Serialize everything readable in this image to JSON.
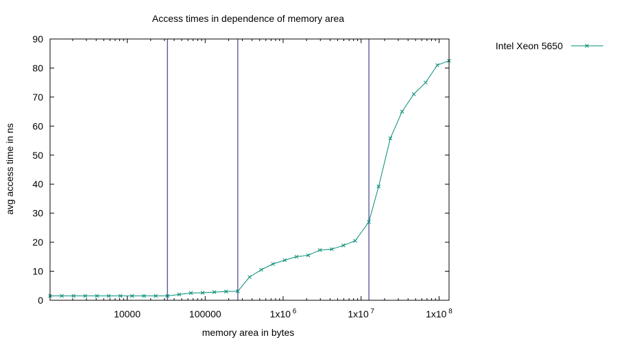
{
  "chart_data": {
    "type": "line",
    "title": "Access times in dependence of memory area",
    "xlabel": "memory area in bytes",
    "ylabel": "avg access time in ns",
    "x_scale": "log",
    "xlim": [
      1024,
      134217728
    ],
    "ylim": [
      0,
      90
    ],
    "y_ticks": [
      0,
      10,
      20,
      30,
      40,
      50,
      60,
      70,
      80,
      90
    ],
    "x_ticks": [
      {
        "value": 10000,
        "label": "10000"
      },
      {
        "value": 100000,
        "label": "100000"
      },
      {
        "value": 1000000,
        "label": "1x10",
        "exp": "6"
      },
      {
        "value": 10000000,
        "label": "1x10",
        "exp": "7"
      },
      {
        "value": 100000000,
        "label": "1x10",
        "exp": "8"
      }
    ],
    "grid": false,
    "legend_position": "outside-top-right",
    "vertical_markers": [
      32768,
      262144,
      12582912
    ],
    "marker_color": "#191970",
    "series": [
      {
        "name": "Intel Xeon 5650",
        "color": "#008b74",
        "marker": "x",
        "x": [
          1024,
          1448,
          2048,
          2896,
          4096,
          5793,
          8192,
          11585,
          16384,
          23170,
          32768,
          46341,
          65536,
          92682,
          131072,
          185364,
          262144,
          370728,
          524288,
          741455,
          1048576,
          1482910,
          2097152,
          2965821,
          4194304,
          5931642,
          8388608,
          12582912,
          16777216,
          23726566,
          33554432,
          47453133,
          67108864,
          94906266,
          134217728
        ],
        "y": [
          1.5,
          1.5,
          1.5,
          1.5,
          1.5,
          1.5,
          1.5,
          1.5,
          1.5,
          1.5,
          1.5,
          2.0,
          2.5,
          2.6,
          2.8,
          3.0,
          3.1,
          8.0,
          10.5,
          12.5,
          13.8,
          15.0,
          15.5,
          17.3,
          17.6,
          18.9,
          20.5,
          27.0,
          39.2,
          55.8,
          65.0,
          71.0,
          75.0,
          81.0,
          82.5
        ]
      }
    ]
  }
}
